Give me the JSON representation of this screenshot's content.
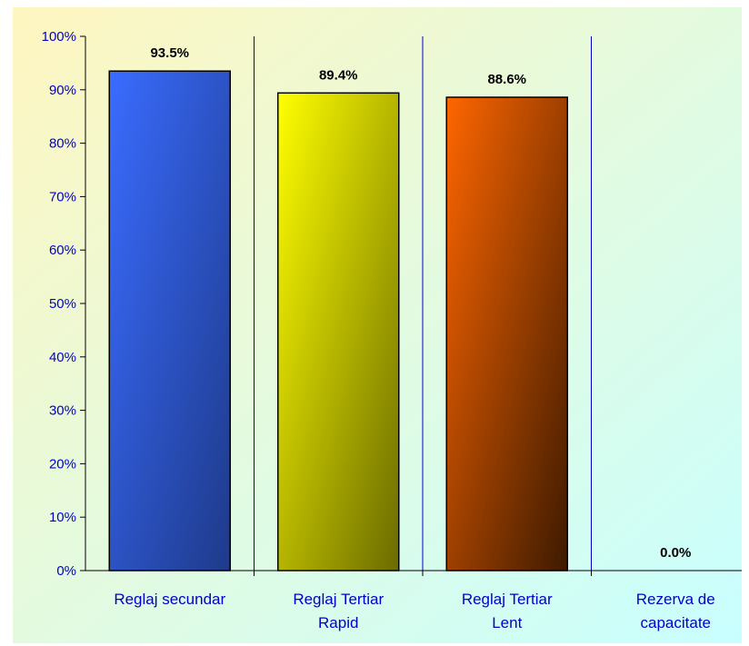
{
  "chart_data": {
    "type": "bar",
    "categories": [
      [
        "Reglaj secundar"
      ],
      [
        "Reglaj Tertiar",
        "Rapid"
      ],
      [
        "Reglaj Tertiar",
        "Lent"
      ],
      [
        "Rezerva de",
        "capacitate"
      ]
    ],
    "values": [
      93.5,
      89.4,
      88.6,
      0.0
    ],
    "data_labels": [
      "93.5%",
      "89.4%",
      "88.6%",
      "0.0%"
    ],
    "ylim": [
      0,
      100
    ],
    "yticks": [
      "0%",
      "10%",
      "20%",
      "30%",
      "40%",
      "50%",
      "60%",
      "70%",
      "80%",
      "90%",
      "100%"
    ],
    "bar_colors": [
      {
        "light": "#3a6cff",
        "dark": "#1e3a8a"
      },
      {
        "light": "#ffff00",
        "dark": "#6b6b00"
      },
      {
        "light": "#ff6600",
        "dark": "#3d1a00"
      },
      {
        "light": "#cccccc",
        "dark": "#666666"
      }
    ],
    "axis_color": "#0000cc",
    "label_color": "#0000cc",
    "background_gradient": [
      "#fff6c0",
      "#c8ffff"
    ]
  }
}
